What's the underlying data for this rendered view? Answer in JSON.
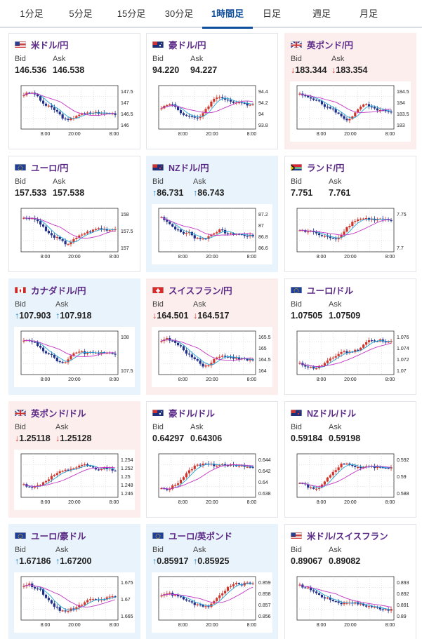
{
  "tabs": [
    "1分足",
    "5分足",
    "15分足",
    "30分足",
    "1時間足",
    "日足",
    "週足",
    "月足"
  ],
  "active_tab": "1時間足",
  "labels": {
    "bid": "Bid",
    "ask": "Ask"
  },
  "x_ticks": [
    "8:00",
    "20:00",
    "8:00"
  ],
  "colors": {
    "up": "#d0352b",
    "down": "#1f2f8a",
    "ma_short": "#22a5d6",
    "ma_long": "#c234c2",
    "rise_arrow": "#1a7fc4",
    "fall_arrow": "#d0352b"
  },
  "pairs": [
    {
      "name": "米ドル/円",
      "flag": "us-jp",
      "bid": "146.536",
      "ask": "146.538",
      "dir": "none",
      "y_ticks": [
        "147.5",
        "147",
        "146.5",
        "146"
      ]
    },
    {
      "name": "豪ドル/円",
      "flag": "au-jp",
      "bid": "94.220",
      "ask": "94.227",
      "dir": "none",
      "y_ticks": [
        "94.4",
        "94.2",
        "94",
        "93.8"
      ]
    },
    {
      "name": "英ポンド/円",
      "flag": "gb-jp",
      "bid": "183.344",
      "ask": "183.354",
      "dir": "down",
      "y_ticks": [
        "184.5",
        "184",
        "183.5",
        "183"
      ]
    },
    {
      "name": "ユーロ/円",
      "flag": "eu-jp",
      "bid": "157.533",
      "ask": "157.538",
      "dir": "none",
      "y_ticks": [
        "158",
        "157.5",
        "157"
      ]
    },
    {
      "name": "NZドル/円",
      "flag": "nz-jp",
      "bid": "86.731",
      "ask": "86.743",
      "dir": "up",
      "y_ticks": [
        "87.2",
        "87",
        "86.8",
        "86.6"
      ]
    },
    {
      "name": "ランド/円",
      "flag": "za-jp",
      "bid": "7.751",
      "ask": "7.761",
      "dir": "none",
      "y_ticks": [
        "7.75",
        "7.7"
      ]
    },
    {
      "name": "カナダドル/円",
      "flag": "ca-jp",
      "bid": "107.903",
      "ask": "107.918",
      "dir": "up",
      "y_ticks": [
        "108",
        "107.5"
      ]
    },
    {
      "name": "スイスフラン/円",
      "flag": "ch-jp",
      "bid": "164.501",
      "ask": "164.517",
      "dir": "down",
      "y_ticks": [
        "165.5",
        "165",
        "164.5",
        "164"
      ]
    },
    {
      "name": "ユーロ/ドル",
      "flag": "eu-us",
      "bid": "1.07505",
      "ask": "1.07509",
      "dir": "none",
      "y_ticks": [
        "1.076",
        "1.074",
        "1.072",
        "1.07"
      ]
    },
    {
      "name": "英ポンド/ドル",
      "flag": "gb-us",
      "bid": "1.25118",
      "ask": "1.25128",
      "dir": "down",
      "y_ticks": [
        "1.254",
        "1.252",
        "1.25",
        "1.248",
        "1.246"
      ]
    },
    {
      "name": "豪ドル/ドル",
      "flag": "au-us",
      "bid": "0.64297",
      "ask": "0.64306",
      "dir": "none",
      "y_ticks": [
        "0.644",
        "0.642",
        "0.64",
        "0.638"
      ]
    },
    {
      "name": "NZドル/ドル",
      "flag": "nz-us",
      "bid": "0.59184",
      "ask": "0.59198",
      "dir": "none",
      "y_ticks": [
        "0.592",
        "0.59",
        "0.588"
      ]
    },
    {
      "name": "ユーロ/豪ドル",
      "flag": "eu-au",
      "bid": "1.67186",
      "ask": "1.67200",
      "dir": "up",
      "y_ticks": [
        "1.675",
        "1.67",
        "1.665"
      ]
    },
    {
      "name": "ユーロ/英ポンド",
      "flag": "eu-gb",
      "bid": "0.85917",
      "ask": "0.85925",
      "dir": "up",
      "y_ticks": [
        "0.859",
        "0.858",
        "0.857",
        "0.856"
      ]
    },
    {
      "name": "米ドル/スイスフラン",
      "flag": "us-ch",
      "bid": "0.89067",
      "ask": "0.89082",
      "dir": "none",
      "y_ticks": [
        "0.893",
        "0.892",
        "0.891",
        "0.89"
      ]
    }
  ]
}
